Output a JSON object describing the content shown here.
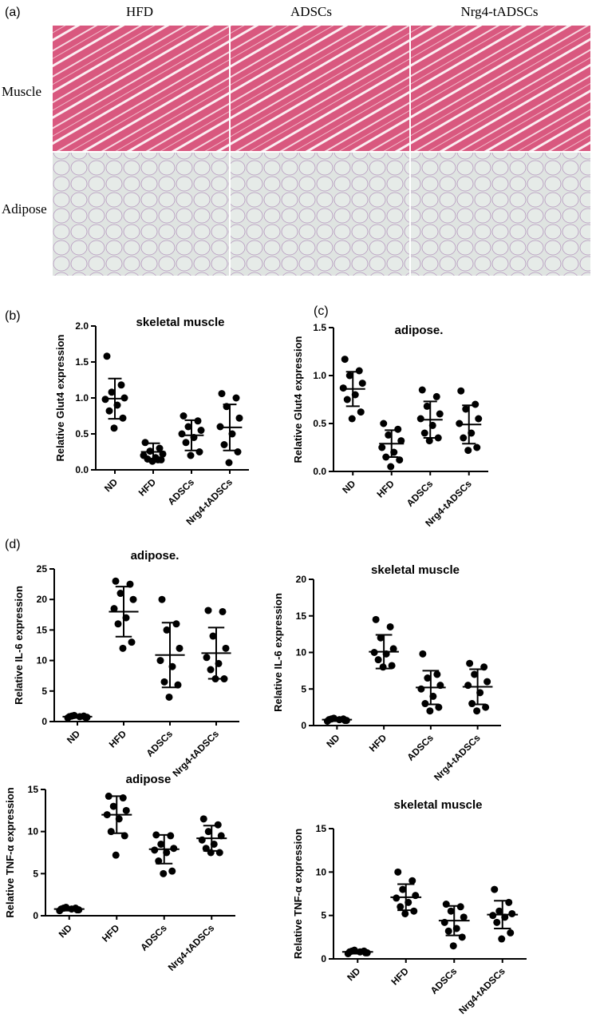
{
  "panel_labels": [
    "(a)",
    "(b)",
    "(c)",
    "(d)"
  ],
  "histology": {
    "columns": [
      "HFD",
      "ADSCs",
      "Nrg4-tADSCs"
    ],
    "rows": [
      "Muscle",
      "Adipose"
    ]
  },
  "chart_data": [
    {
      "type": "dot",
      "title": "skeletal muscle",
      "ylabel": "Relative Glut4 expression",
      "categories": [
        "ND",
        "HFD",
        "ADSCs",
        "Nrg4-tADSCs"
      ],
      "points": [
        [
          1.58,
          1.18,
          1.08,
          1.0,
          0.98,
          0.9,
          0.82,
          0.72,
          0.58
        ],
        [
          0.38,
          0.3,
          0.26,
          0.22,
          0.2,
          0.17,
          0.15,
          0.14,
          0.12,
          0.14
        ],
        [
          0.75,
          0.68,
          0.6,
          0.55,
          0.5,
          0.45,
          0.38,
          0.25,
          0.2
        ],
        [
          1.06,
          1.0,
          0.88,
          0.72,
          0.6,
          0.5,
          0.35,
          0.25,
          0.1
        ]
      ],
      "means": [
        0.99,
        0.25,
        0.48,
        0.59
      ],
      "sds": [
        0.28,
        0.12,
        0.21,
        0.32
      ],
      "ylim": [
        0,
        2
      ],
      "yticks": [
        {
          "value": 0,
          "label": "0.0"
        },
        0.5,
        {
          "value": 1,
          "label": "1.0"
        },
        1.5,
        {
          "value": 2,
          "label": "2.0"
        }
      ],
      "color": "#000000"
    },
    {
      "type": "dot",
      "title": "adipose.",
      "ylabel": "Relative Glut4 expression",
      "categories": [
        "ND",
        "HFD",
        "ADSCs",
        "Nrg4-tADSCs"
      ],
      "points": [
        [
          1.17,
          1.05,
          1.0,
          0.92,
          0.87,
          0.8,
          0.75,
          0.62,
          0.55
        ],
        [
          0.5,
          0.44,
          0.38,
          0.32,
          0.25,
          0.2,
          0.15,
          0.12,
          0.05
        ],
        [
          0.85,
          0.78,
          0.68,
          0.6,
          0.55,
          0.48,
          0.4,
          0.35,
          0.32
        ],
        [
          0.84,
          0.7,
          0.65,
          0.55,
          0.5,
          0.4,
          0.35,
          0.25,
          0.22
        ]
      ],
      "means": [
        0.86,
        0.29,
        0.54,
        0.49
      ],
      "sds": [
        0.18,
        0.14,
        0.19,
        0.2
      ],
      "ylim": [
        0,
        1.5
      ],
      "yticks": [
        {
          "value": 0,
          "label": "0.0"
        },
        0.5,
        {
          "value": 1,
          "label": "1.0"
        },
        1.5
      ],
      "color": "#000000"
    },
    {
      "type": "dot",
      "title": "adipose.",
      "ylabel": "Relative IL-6 expression",
      "categories": [
        "ND",
        "HFD",
        "ADSCs",
        "Nrg4-tADSCs"
      ],
      "points": [
        [
          0.8,
          0.9,
          1.0,
          0.7,
          0.6,
          0.8,
          0.9,
          0.7
        ],
        [
          23,
          22.5,
          21,
          20,
          18.5,
          17,
          16,
          13,
          12
        ],
        [
          20,
          16,
          15,
          12,
          10,
          9,
          6.5,
          6,
          4
        ],
        [
          18.2,
          18,
          14,
          12,
          10.5,
          9.5,
          8.5,
          7,
          7
        ]
      ],
      "means": [
        0.8,
        18,
        10.9,
        11.2
      ],
      "sds": [
        0.2,
        4.1,
        5.3,
        4.2
      ],
      "ylim": [
        0,
        25
      ],
      "yticks": [
        0,
        5,
        10,
        15,
        20,
        25
      ],
      "color": "#000000"
    },
    {
      "type": "dot",
      "title": "skeletal muscle",
      "ylabel": "Relative IL-6 expression",
      "categories": [
        "ND",
        "HFD",
        "ADSCs",
        "Nrg4-tADSCs"
      ],
      "points": [
        [
          0.8,
          0.9,
          1.0,
          0.7,
          0.6,
          0.8,
          0.9,
          0.7
        ],
        [
          14.5,
          13.5,
          12,
          10.5,
          10,
          9.8,
          9,
          8.2,
          8
        ],
        [
          9.8,
          7,
          6.5,
          5.5,
          5,
          4,
          3,
          2.5,
          2
        ],
        [
          8.5,
          8,
          7,
          6,
          5.5,
          4.5,
          3,
          2.5,
          2
        ]
      ],
      "means": [
        0.8,
        10.1,
        5.2,
        5.3
      ],
      "sds": [
        0.2,
        2.3,
        2.3,
        2.4
      ],
      "ylim": [
        0,
        20
      ],
      "yticks": [
        0,
        5,
        10,
        15,
        20
      ],
      "color": "#000000"
    },
    {
      "type": "dot",
      "title": "adipose",
      "ylabel": "Relative TNF-α expression",
      "categories": [
        "ND",
        "HFD",
        "ADSCs",
        "Nrg4-tADSCs"
      ],
      "points": [
        [
          0.8,
          0.9,
          1.0,
          0.7,
          0.6,
          0.8,
          0.9,
          0.7
        ],
        [
          14.2,
          14,
          13,
          12.5,
          12,
          11.5,
          10,
          9.5,
          7.2
        ],
        [
          9.6,
          9.5,
          8.5,
          8,
          7.8,
          7.5,
          6.5,
          5.3,
          5
        ],
        [
          11.5,
          10.8,
          10,
          9.5,
          9,
          8.5,
          8,
          7.5,
          7.5
        ]
      ],
      "means": [
        0.8,
        12.0,
        7.9,
        9.2
      ],
      "sds": [
        0.2,
        2.2,
        1.7,
        1.5
      ],
      "ylim": [
        0,
        15
      ],
      "yticks": [
        0,
        5,
        10,
        15
      ],
      "color": "#000000"
    },
    {
      "type": "dot",
      "title": "skeletal muscle",
      "ylabel": "Relative TNF-α expression",
      "categories": [
        "ND",
        "HFD",
        "ADSCs",
        "Nrg4-tADSCs"
      ],
      "points": [
        [
          0.8,
          0.9,
          1.0,
          0.7,
          0.6,
          0.8,
          0.9,
          0.7
        ],
        [
          10,
          9,
          8,
          7.3,
          7,
          6.5,
          6,
          5.5,
          5.2
        ],
        [
          6.3,
          6,
          5.5,
          4.8,
          4.2,
          3.5,
          3.2,
          2.5,
          1.5
        ],
        [
          8,
          6.5,
          5.5,
          5.2,
          5,
          4.8,
          4.2,
          3,
          2.3
        ]
      ],
      "means": [
        0.8,
        7.1,
        4.4,
        5.1
      ],
      "sds": [
        0.2,
        1.5,
        1.7,
        1.6
      ],
      "ylim": [
        0,
        15
      ],
      "yticks": [
        0,
        5,
        10,
        15
      ],
      "color": "#000000"
    }
  ]
}
